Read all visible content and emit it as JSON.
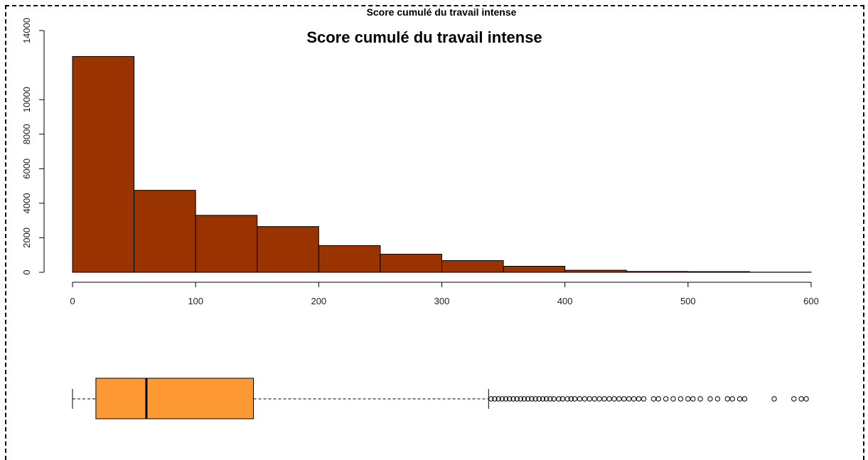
{
  "colors": {
    "histogram_fill": "#993300",
    "boxplot_fill": "#FF9933",
    "frame": "#000000"
  },
  "chart_data": [
    {
      "type": "bar",
      "subtype": "histogram",
      "title": "Score cumulé du travail intense",
      "overlapping_title": "Score cumulé du travail intense",
      "bin_edges": [
        0,
        50,
        100,
        150,
        200,
        250,
        300,
        350,
        400,
        450,
        500,
        550,
        600
      ],
      "values": [
        12500,
        4750,
        3300,
        2650,
        1550,
        1050,
        680,
        350,
        120,
        50,
        40,
        10
      ],
      "xlim": [
        0,
        600
      ],
      "ylim": [
        0,
        14000
      ],
      "x_ticks": [
        "0",
        "100",
        "200",
        "300",
        "400",
        "500",
        "600"
      ],
      "y_ticks": [
        "0",
        "2000",
        "4000",
        "6000",
        "8000",
        "10000",
        "14000"
      ],
      "xlabel": "",
      "ylabel": "",
      "grid": false
    },
    {
      "type": "boxplot",
      "orientation": "horizontal",
      "min": 0,
      "q1": 19,
      "median": 60,
      "q3": 147,
      "upper_whisker": 338,
      "outliers": [
        340,
        343,
        346,
        349,
        352,
        355,
        358,
        361,
        364,
        367,
        370,
        373,
        376,
        379,
        382,
        385,
        388,
        391,
        395,
        398,
        402,
        405,
        408,
        412,
        416,
        420,
        424,
        428,
        432,
        436,
        440,
        444,
        448,
        452,
        456,
        460,
        464,
        472,
        476,
        482,
        488,
        494,
        500,
        504,
        510,
        518,
        524,
        532,
        536,
        542,
        546,
        570,
        586,
        592,
        596
      ],
      "xlim": [
        0,
        600
      ]
    }
  ]
}
